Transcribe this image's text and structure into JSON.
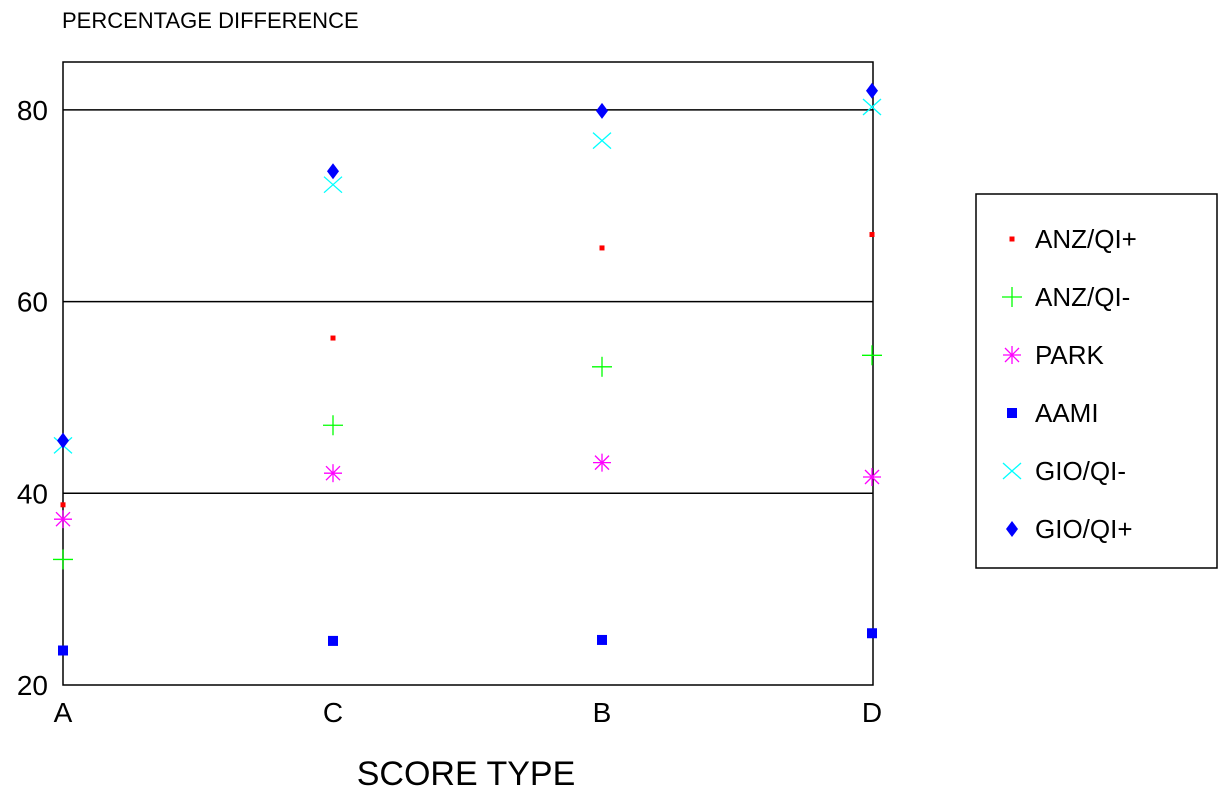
{
  "chart_data": {
    "type": "scatter",
    "title": "PERCENTAGE DIFFERENCE",
    "xlabel": "SCORE TYPE",
    "ylabel": "",
    "categories": [
      "A",
      "C",
      "B",
      "D"
    ],
    "ylim": [
      20,
      85
    ],
    "yticks": [
      20,
      40,
      60,
      80
    ],
    "grid": "horizontal",
    "legend_position": "right",
    "series": [
      {
        "name": "ANZ/QI+",
        "marker": "dot",
        "color": "#ff0000",
        "values": [
          38.8,
          56.2,
          65.6,
          67.0
        ]
      },
      {
        "name": "ANZ/QI-",
        "marker": "plus",
        "color": "#00ff00",
        "values": [
          33.1,
          47.1,
          53.2,
          54.4
        ]
      },
      {
        "name": "PARK",
        "marker": "asterisk",
        "color": "#ff00ff",
        "values": [
          37.3,
          42.1,
          43.2,
          41.7
        ]
      },
      {
        "name": "AAMI",
        "marker": "square",
        "color": "#0000ff",
        "values": [
          23.6,
          24.6,
          24.7,
          25.4
        ]
      },
      {
        "name": "GIO/QI-",
        "marker": "x",
        "color": "#00ffff",
        "values": [
          45.0,
          72.2,
          76.8,
          80.3
        ]
      },
      {
        "name": "GIO/QI+",
        "marker": "diamond",
        "color": "#0000ff",
        "values": [
          45.5,
          73.6,
          79.9,
          82.0
        ]
      }
    ]
  }
}
